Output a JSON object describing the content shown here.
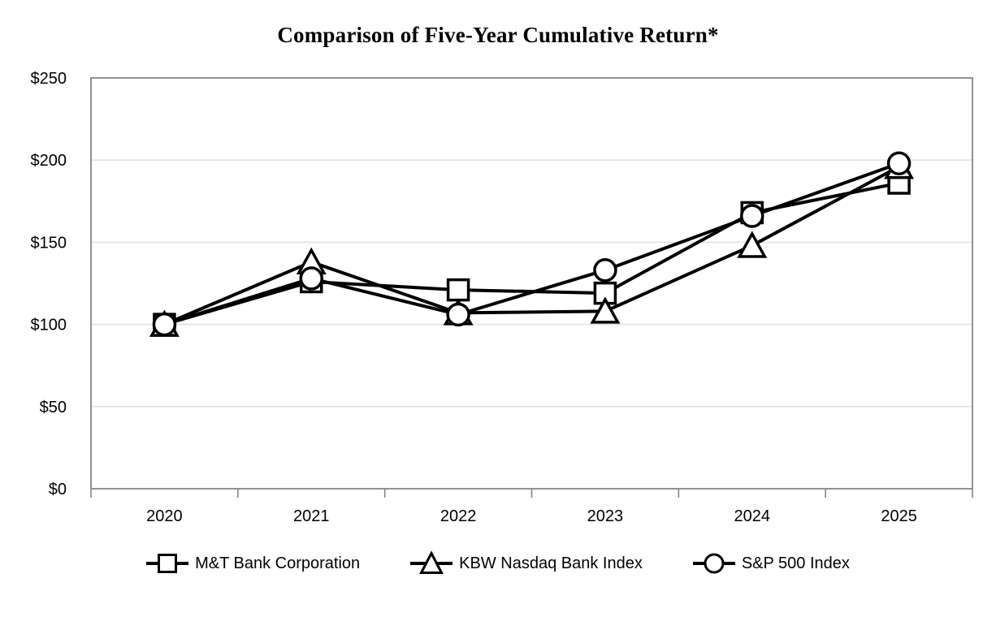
{
  "chart_data": {
    "type": "line",
    "title": "Comparison of Five-Year Cumulative Return*",
    "categories": [
      "2020",
      "2021",
      "2022",
      "2023",
      "2024",
      "2025"
    ],
    "series": [
      {
        "name": "M&T Bank Corporation",
        "marker": "square",
        "values": [
          100,
          126,
          121,
          119,
          168,
          186
        ]
      },
      {
        "name": "KBW Nasdaq Bank Index",
        "marker": "triangle",
        "values": [
          100,
          138,
          107,
          108,
          148,
          196
        ]
      },
      {
        "name": "S&P 500 Index",
        "marker": "circle",
        "values": [
          100,
          128,
          106,
          133,
          166,
          198
        ]
      }
    ],
    "xlabel": "",
    "ylabel": "",
    "ylim": [
      0,
      250
    ],
    "y_ticks": [
      0,
      50,
      100,
      150,
      200,
      250
    ],
    "y_tick_labels": [
      "$0",
      "$50",
      "$100",
      "$150",
      "$200",
      "$250"
    ],
    "grid": true,
    "legend_position": "bottom",
    "colors": {
      "series_stroke": "#000000",
      "marker_fill": "#ffffff",
      "gridline": "#e2e2e2",
      "plot_border": "#858585",
      "tick": "#858585",
      "text": "#000000",
      "background": "#ffffff"
    }
  }
}
